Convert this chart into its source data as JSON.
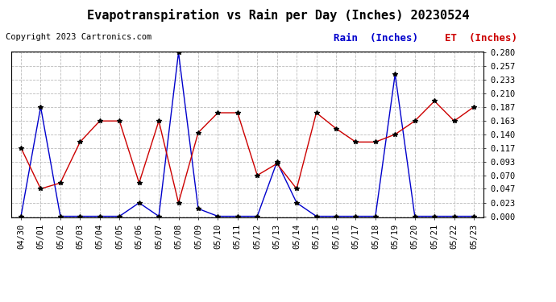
{
  "title": "Evapotranspiration vs Rain per Day (Inches) 20230524",
  "copyright": "Copyright 2023 Cartronics.com",
  "legend_rain": "Rain  (Inches)",
  "legend_et": "ET  (Inches)",
  "dates": [
    "04/30",
    "05/01",
    "05/02",
    "05/03",
    "05/04",
    "05/05",
    "05/06",
    "05/07",
    "05/08",
    "05/09",
    "05/10",
    "05/11",
    "05/12",
    "05/13",
    "05/14",
    "05/15",
    "05/16",
    "05/17",
    "05/18",
    "05/19",
    "05/20",
    "05/21",
    "05/22",
    "05/23"
  ],
  "rain": [
    0.0,
    0.187,
    0.0,
    0.0,
    0.0,
    0.0,
    0.023,
    0.0,
    0.28,
    0.013,
    0.0,
    0.0,
    0.0,
    0.093,
    0.023,
    0.0,
    0.0,
    0.0,
    0.0,
    0.243,
    0.0,
    0.0,
    0.0,
    0.0
  ],
  "et": [
    0.117,
    0.047,
    0.057,
    0.127,
    0.163,
    0.163,
    0.057,
    0.163,
    0.023,
    0.143,
    0.177,
    0.177,
    0.07,
    0.09,
    0.047,
    0.177,
    0.15,
    0.127,
    0.127,
    0.14,
    0.163,
    0.197,
    0.163,
    0.187
  ],
  "rain_color": "#0000cc",
  "et_color": "#cc0000",
  "marker_color": "#000000",
  "background_color": "#ffffff",
  "grid_color": "#bbbbbb",
  "title_fontsize": 11,
  "copyright_fontsize": 7.5,
  "legend_fontsize": 9,
  "tick_fontsize": 7.5,
  "ylim": [
    0.0,
    0.28
  ],
  "yticks": [
    0.0,
    0.023,
    0.047,
    0.07,
    0.093,
    0.117,
    0.14,
    0.163,
    0.187,
    0.21,
    0.233,
    0.257,
    0.28
  ]
}
